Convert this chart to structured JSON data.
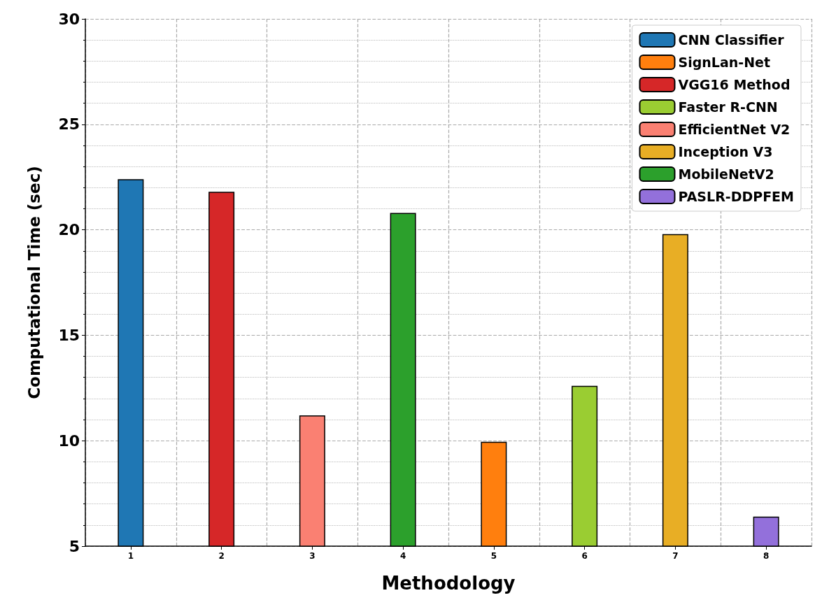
{
  "chart_data": {
    "type": "bar",
    "xlabel": "Methodology",
    "ylabel": "Computational Time (sec)",
    "categories": [
      "1",
      "2",
      "3",
      "4",
      "5",
      "6",
      "7",
      "8"
    ],
    "series": [
      {
        "name": "CNN Classifier",
        "color": "#1f77b4",
        "values": [
          22.4,
          null,
          null,
          null,
          null,
          null,
          null,
          null
        ]
      },
      {
        "name": "VGG16 Method",
        "color": "#d62728",
        "values": [
          null,
          21.8,
          null,
          null,
          null,
          null,
          null,
          null
        ]
      },
      {
        "name": "EfficientNet V2",
        "color": "#fa8072",
        "values": [
          null,
          null,
          11.2,
          null,
          null,
          null,
          null,
          null
        ]
      },
      {
        "name": "MobileNetV2",
        "color": "#2ca02c",
        "values": [
          null,
          null,
          null,
          20.8,
          null,
          null,
          null,
          null
        ]
      },
      {
        "name": "SignLan-Net",
        "color": "#ff7f0e",
        "values": [
          null,
          null,
          null,
          null,
          9.95,
          null,
          null,
          null
        ]
      },
      {
        "name": "Faster R-CNN",
        "color": "#9acd32",
        "values": [
          null,
          null,
          null,
          null,
          null,
          12.6,
          null,
          null
        ]
      },
      {
        "name": "Inception V3",
        "color": "#e8ae25",
        "values": [
          null,
          null,
          null,
          null,
          null,
          null,
          19.8,
          null
        ]
      },
      {
        "name": "PASLR-DDPFEM",
        "color": "#9370db",
        "values": [
          null,
          null,
          null,
          null,
          null,
          null,
          null,
          6.4
        ]
      }
    ],
    "ylim": [
      5,
      30
    ],
    "yticks": [
      5,
      10,
      15,
      20,
      25,
      30
    ],
    "grid": true,
    "legend": "top right"
  }
}
